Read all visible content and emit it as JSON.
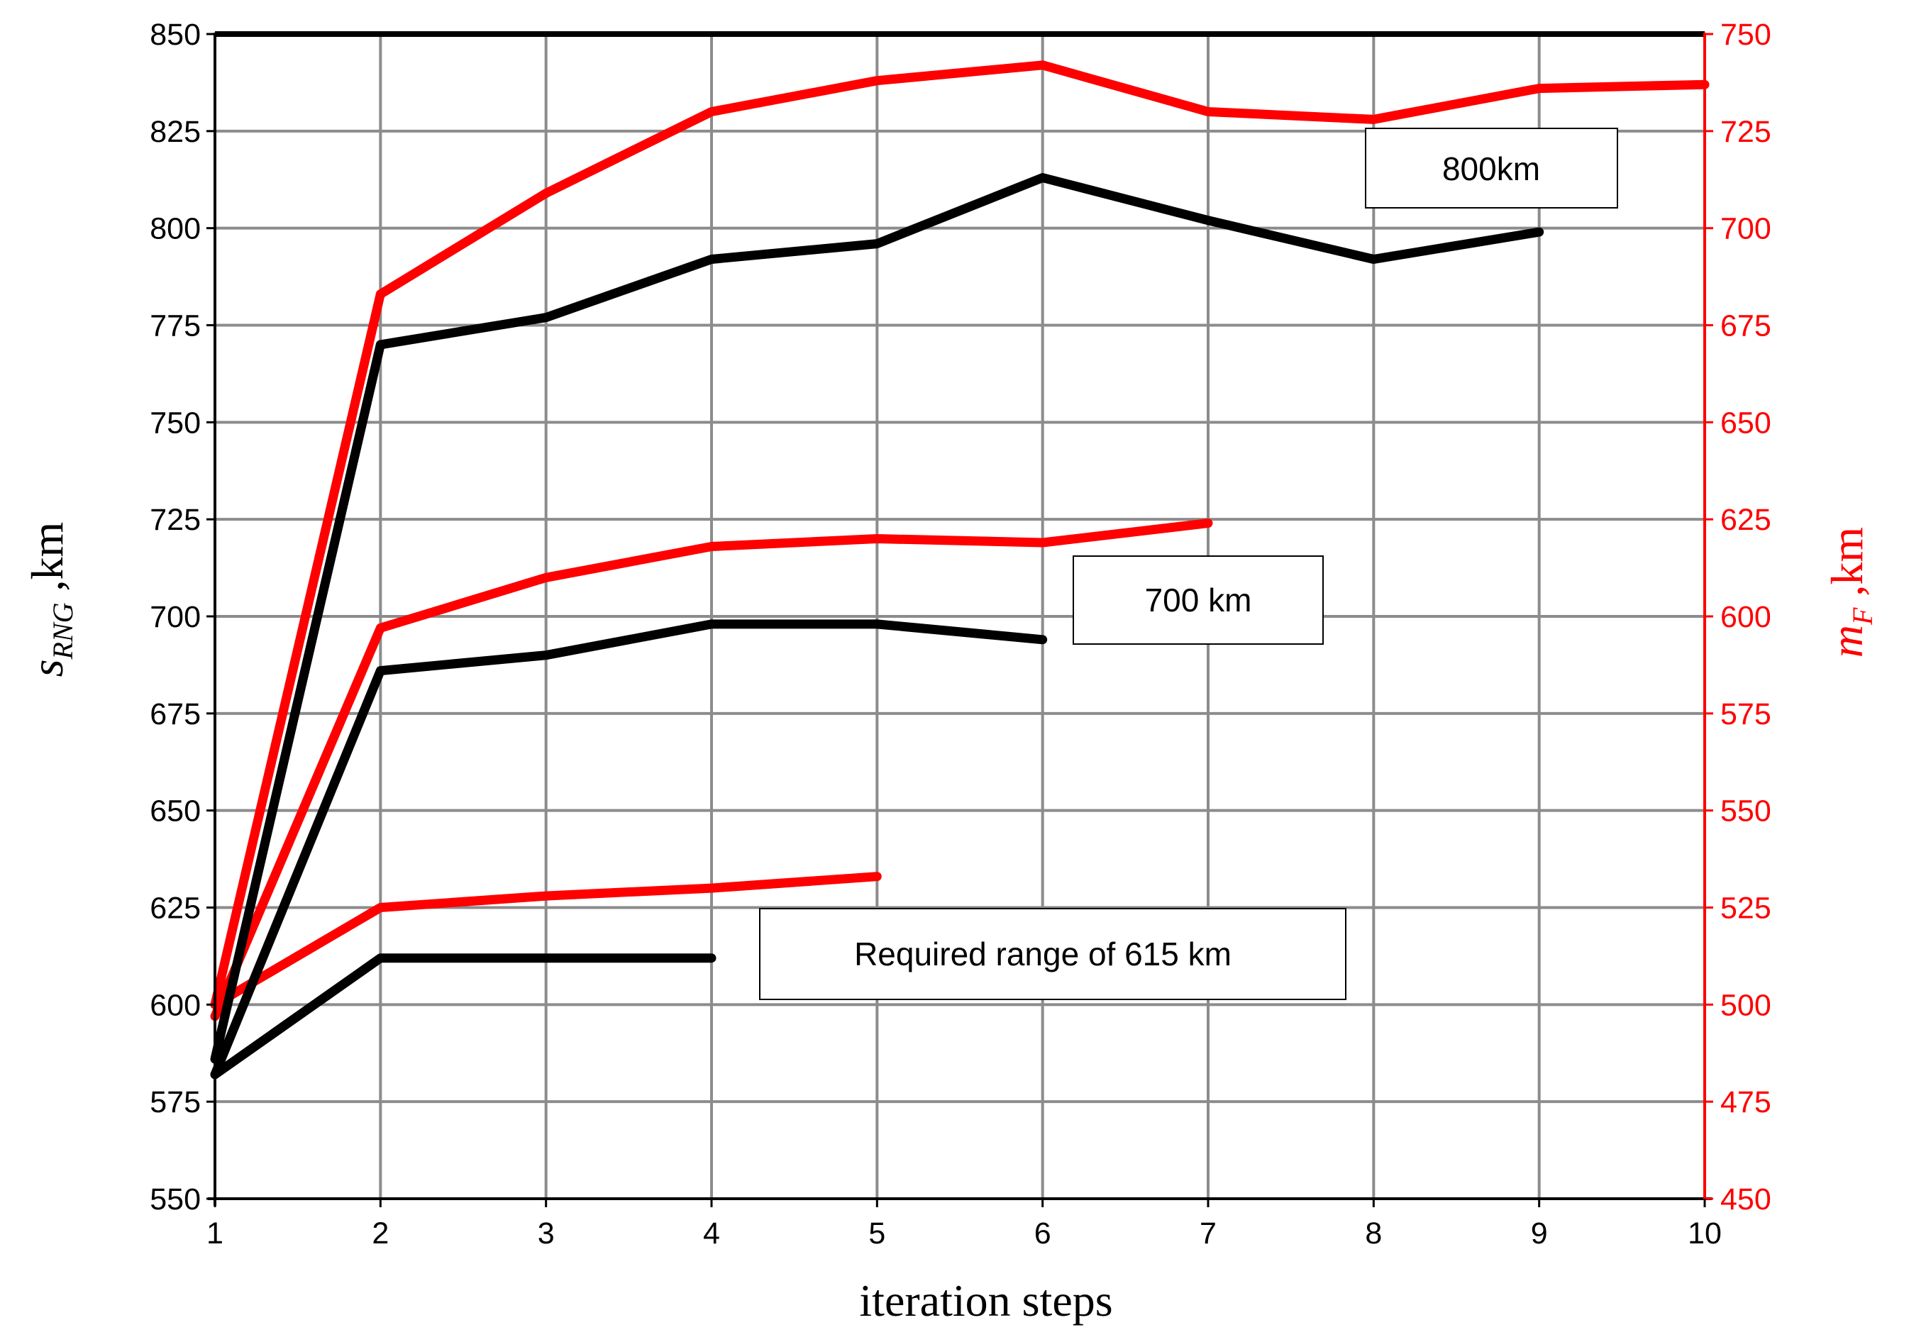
{
  "chart_data": {
    "type": "line",
    "xlabel": "iteration steps",
    "ylabel_left": {
      "main": "s",
      "sub": "RNG",
      "suffix": " ,km"
    },
    "ylabel_right": {
      "main": "m",
      "sub": "F",
      "suffix": " ,km"
    },
    "x_ticks": [
      "1",
      "2",
      "3",
      "4",
      "5",
      "6",
      "7",
      "8",
      "9",
      "10"
    ],
    "xlim": [
      1,
      10
    ],
    "ylim_left": [
      550,
      850
    ],
    "ylim_right": [
      450,
      750
    ],
    "y_ticks_left": [
      "550",
      "575",
      "600",
      "625",
      "650",
      "675",
      "700",
      "725",
      "750",
      "775",
      "800",
      "825",
      "850"
    ],
    "y_ticks_right": [
      "450",
      "475",
      "500",
      "525",
      "550",
      "575",
      "600",
      "625",
      "650",
      "675",
      "700",
      "725",
      "750"
    ],
    "grid": true,
    "colors": {
      "left_series": "#000000",
      "right_series": "#ff0000",
      "grid": "#8c8c8c"
    },
    "series": [
      {
        "axis": "left",
        "color": "#000000",
        "x": [
          1,
          2,
          3,
          4
        ],
        "y": [
          582,
          612,
          612,
          612
        ]
      },
      {
        "axis": "right",
        "color": "#ff0000",
        "x": [
          1,
          2,
          3,
          4,
          5
        ],
        "y": [
          500,
          525,
          528,
          530,
          533
        ]
      },
      {
        "axis": "left",
        "color": "#000000",
        "x": [
          1,
          2,
          3,
          4,
          5,
          6
        ],
        "y": [
          582,
          686,
          690,
          698,
          698,
          694
        ]
      },
      {
        "axis": "right",
        "color": "#ff0000",
        "x": [
          1,
          2,
          3,
          4,
          5,
          6,
          7
        ],
        "y": [
          497,
          597,
          610,
          618,
          620,
          619,
          624
        ]
      },
      {
        "axis": "left",
        "color": "#000000",
        "x": [
          1,
          2,
          3,
          4,
          5,
          6,
          7,
          8,
          9
        ],
        "y": [
          586,
          770,
          777,
          792,
          796,
          813,
          802,
          792,
          799
        ]
      },
      {
        "axis": "right",
        "color": "#ff0000",
        "x": [
          1,
          2,
          3,
          4,
          5,
          6,
          7,
          8,
          9,
          10
        ],
        "y": [
          500,
          683,
          709,
          730,
          738,
          742,
          730,
          728,
          736,
          737
        ]
      }
    ],
    "annotations": [
      {
        "text": "800km"
      },
      {
        "text": "700 km"
      },
      {
        "text": "Required range of 615 km"
      }
    ]
  }
}
